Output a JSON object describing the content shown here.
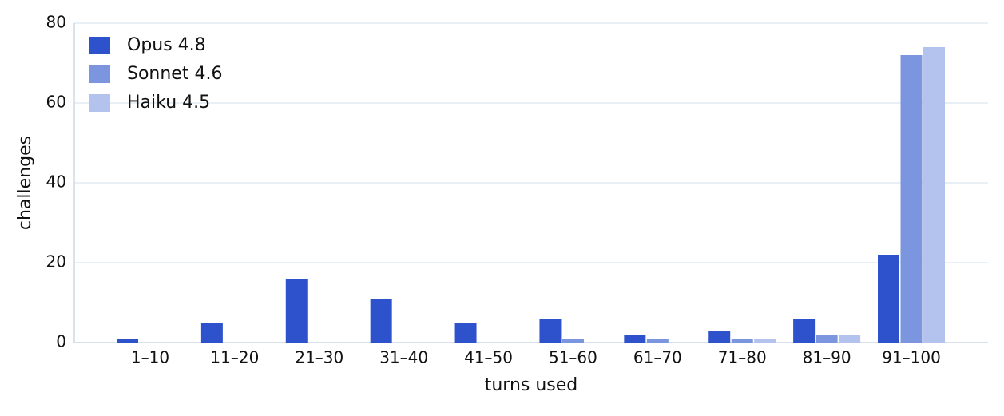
{
  "chart_data": {
    "type": "bar",
    "x_label": "turns used",
    "y_label": "challenges",
    "categories": [
      "1–10",
      "11–20",
      "21–30",
      "31–40",
      "41–50",
      "51–60",
      "61–70",
      "71–80",
      "81–90",
      "91–100"
    ],
    "series": [
      {
        "name": "Opus 4.8",
        "color": "#2e52cc",
        "values": [
          1,
          5,
          16,
          11,
          5,
          6,
          2,
          3,
          6,
          22
        ]
      },
      {
        "name": "Sonnet 4.6",
        "color": "#7b95de",
        "values": [
          0,
          0,
          0,
          0,
          0,
          1,
          1,
          1,
          2,
          72
        ]
      },
      {
        "name": "Haiku 4.5",
        "color": "#b3c3ee",
        "values": [
          0,
          0,
          0,
          0,
          0,
          0,
          0,
          1,
          2,
          74
        ]
      }
    ],
    "ylim": [
      0,
      80
    ],
    "yticks": [
      0,
      20,
      40,
      60,
      80
    ],
    "grid": true,
    "legend": "upper left"
  }
}
